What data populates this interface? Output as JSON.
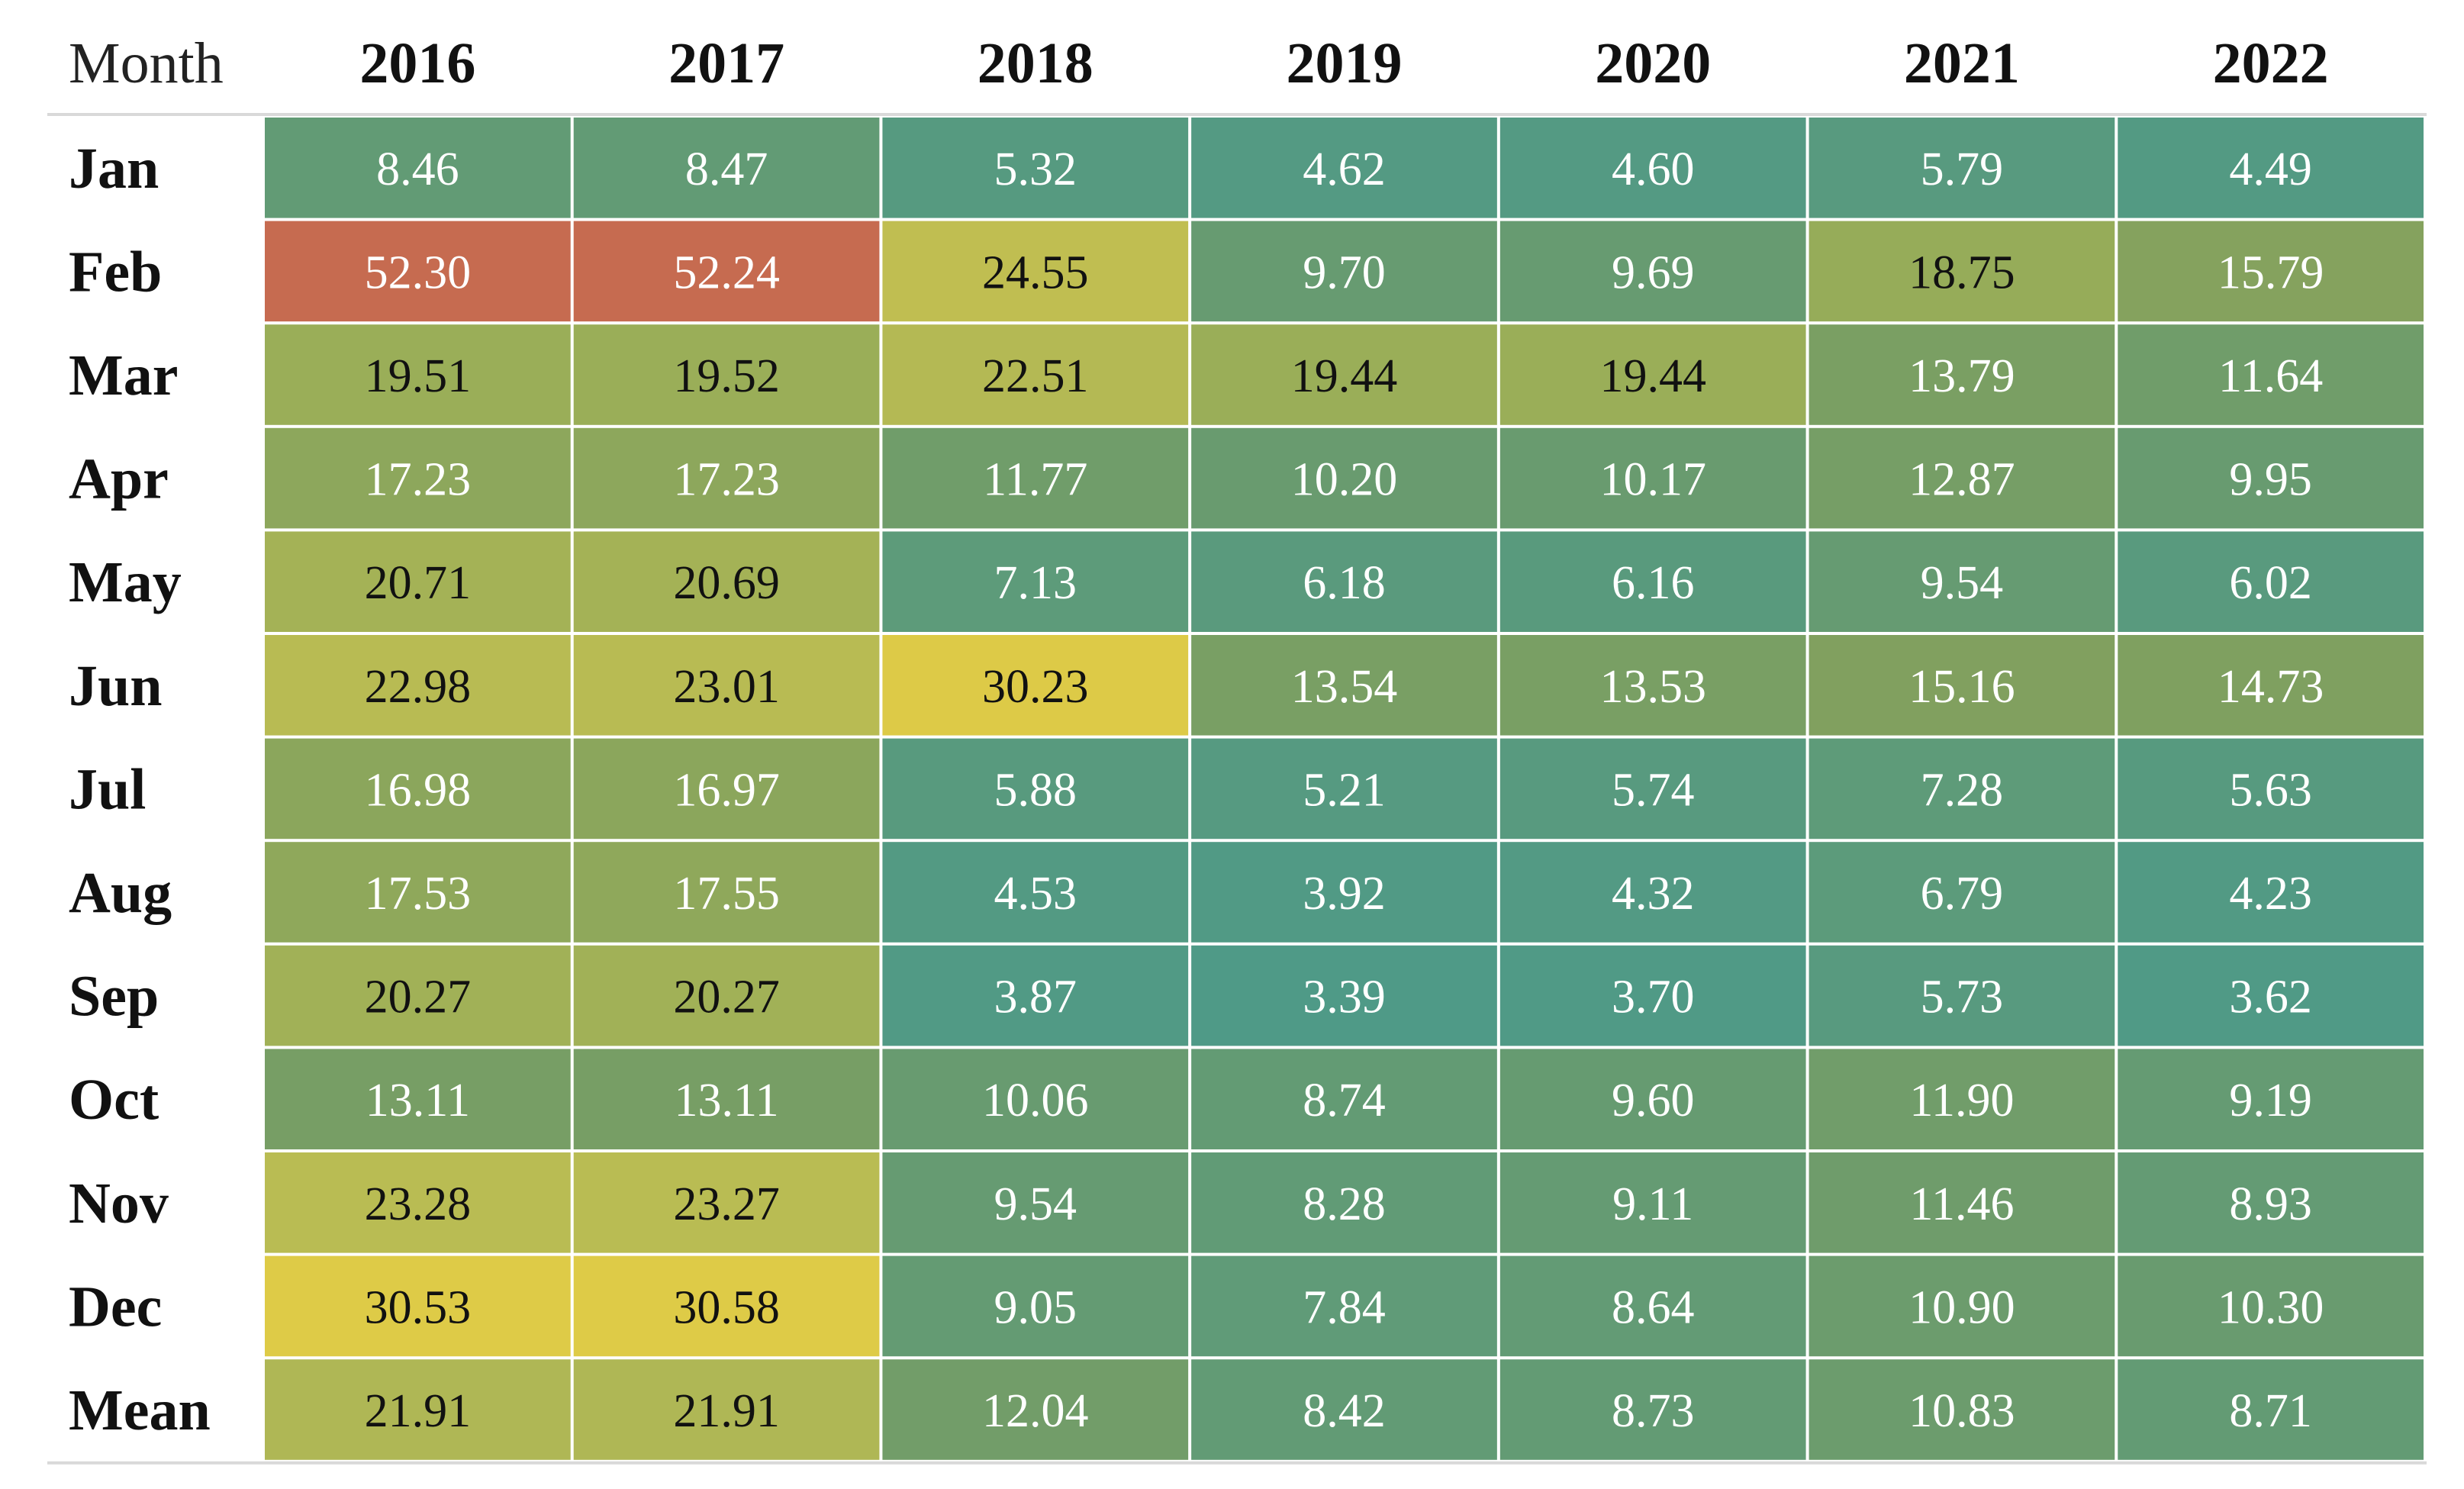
{
  "chart_data": {
    "type": "heatmap",
    "corner_label": "Month",
    "columns": [
      "2016",
      "2017",
      "2018",
      "2019",
      "2020",
      "2021",
      "2022"
    ],
    "rows": [
      "Jan",
      "Feb",
      "Mar",
      "Apr",
      "May",
      "Jun",
      "Jul",
      "Aug",
      "Sep",
      "Oct",
      "Nov",
      "Dec",
      "Mean"
    ],
    "values": [
      [
        "8.46",
        "8.47",
        "5.32",
        "4.62",
        "4.60",
        "5.79",
        "4.49"
      ],
      [
        "52.30",
        "52.24",
        "24.55",
        "9.70",
        "9.69",
        "18.75",
        "15.79"
      ],
      [
        "19.51",
        "19.52",
        "22.51",
        "19.44",
        "19.44",
        "13.79",
        "11.64"
      ],
      [
        "17.23",
        "17.23",
        "11.77",
        "10.20",
        "10.17",
        "12.87",
        "9.95"
      ],
      [
        "20.71",
        "20.69",
        "7.13",
        "6.18",
        "6.16",
        "9.54",
        "6.02"
      ],
      [
        "22.98",
        "23.01",
        "30.23",
        "13.54",
        "13.53",
        "15.16",
        "14.73"
      ],
      [
        "16.98",
        "16.97",
        "5.88",
        "5.21",
        "5.74",
        "7.28",
        "5.63"
      ],
      [
        "17.53",
        "17.55",
        "4.53",
        "3.92",
        "4.32",
        "6.79",
        "4.23"
      ],
      [
        "20.27",
        "20.27",
        "3.87",
        "3.39",
        "3.70",
        "5.73",
        "3.62"
      ],
      [
        "13.11",
        "13.11",
        "10.06",
        "8.74",
        "9.60",
        "11.90",
        "9.19"
      ],
      [
        "23.28",
        "23.27",
        "9.54",
        "8.28",
        "9.11",
        "11.46",
        "8.93"
      ],
      [
        "30.53",
        "30.58",
        "9.05",
        "7.84",
        "8.64",
        "10.90",
        "10.30"
      ],
      [
        "21.91",
        "21.91",
        "12.04",
        "8.42",
        "8.73",
        "10.83",
        "8.71"
      ]
    ],
    "colorscale": {
      "stops": [
        {
          "value": 3.39,
          "color": "#4f9a87"
        },
        {
          "value": 10.0,
          "color": "#689b70"
        },
        {
          "value": 15.0,
          "color": "#80a05f"
        },
        {
          "value": 19.5,
          "color": "#9aae58"
        },
        {
          "value": 23.0,
          "color": "#b8bb53"
        },
        {
          "value": 30.5,
          "color": "#decb47"
        },
        {
          "value": 52.3,
          "color": "#c66b50"
        }
      ],
      "dark_text_range": [
        18.5,
        32
      ],
      "dark_text_color": "#111111",
      "light_text_color": "#ffffff"
    },
    "border_color": "#ffffff",
    "rule_color": "#d9d9d9"
  }
}
